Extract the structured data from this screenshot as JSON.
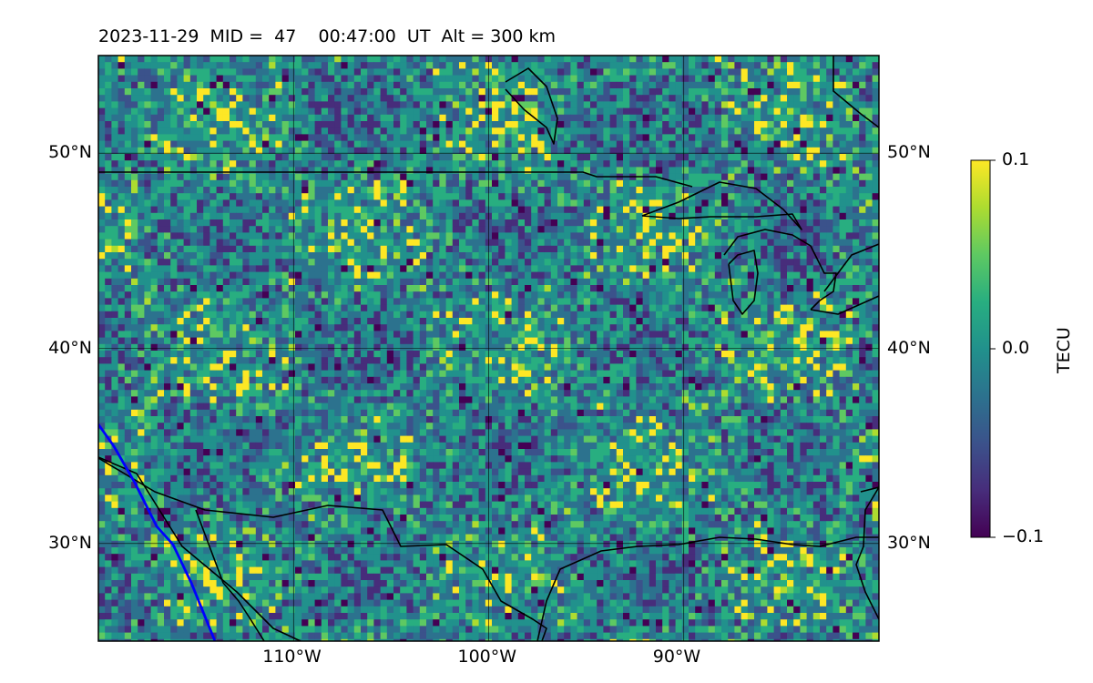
{
  "title": "2023-11-29  MID =  47    00:47:00  UT  Alt = 300 km",
  "map": {
    "lon_range": [
      -120,
      -80
    ],
    "lat_range": [
      25,
      55
    ],
    "lat_ticks": [
      {
        "lat": 50,
        "label": "50°N"
      },
      {
        "lat": 40,
        "label": "40°N"
      },
      {
        "lat": 30,
        "label": "30°N"
      }
    ],
    "lon_ticks": [
      {
        "lon": -110,
        "label": "110°W"
      },
      {
        "lon": -100,
        "label": "100°W"
      },
      {
        "lon": -90,
        "label": "90°W"
      }
    ],
    "colormap": "viridis",
    "boundary_color": "#000000",
    "track_color": "#0000ff",
    "grid": true
  },
  "colorbar": {
    "label": "TECU",
    "vmin": -0.1,
    "vmax": 0.1,
    "ticks": [
      {
        "value": 0.1,
        "label": "0.1"
      },
      {
        "value": 0.0,
        "label": "0.0"
      },
      {
        "value": -0.1,
        "label": "−0.1"
      }
    ]
  }
}
